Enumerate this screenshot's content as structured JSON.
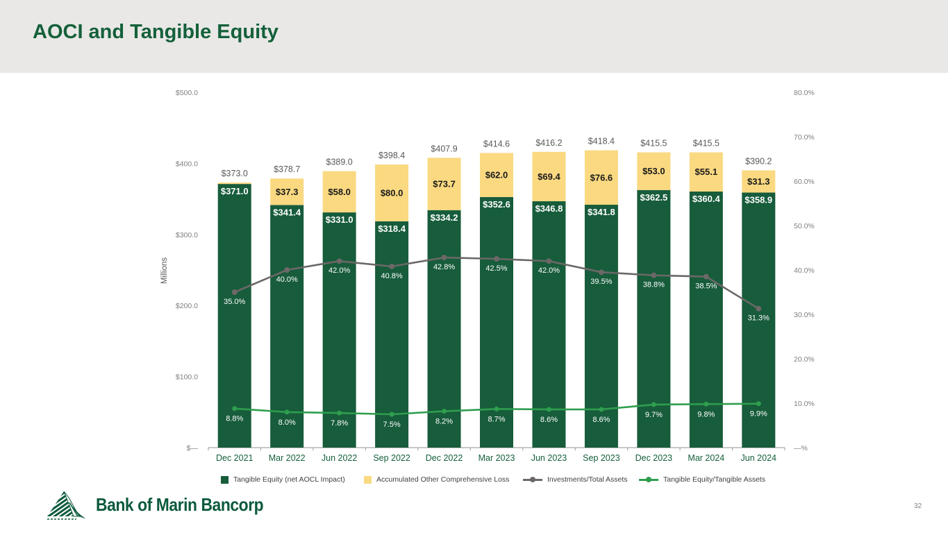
{
  "slide": {
    "title": "AOCI and Tangible Equity",
    "page_number": "32",
    "logo_text": "Bank of Marin Bancorp"
  },
  "colors": {
    "header_band": "#e9e8e6",
    "title_green": "#14603a",
    "bar_green": "#175c3b",
    "bar_yellow": "#fad981",
    "line_gray": "#6b6867",
    "line_green": "#2e9e4e",
    "total_label_gray": "#595959",
    "axis_tick_gray": "#7f7f7f",
    "x_label_green": "#14603a",
    "axis_line_gray": "#a6a6a6"
  },
  "chart_data": {
    "type": "bar",
    "subtype": "stacked-bar-with-lines",
    "categories": [
      "Dec 2021",
      "Mar 2022",
      "Jun 2022",
      "Sep 2022",
      "Dec 2022",
      "Mar 2023",
      "Jun 2023",
      "Sep 2023",
      "Dec 2023",
      "Mar 2024",
      "Jun 2024"
    ],
    "series": [
      {
        "name": "Tangible Equity (net AOCL Impact)",
        "type": "bar",
        "axis": "left",
        "color": "#175c3b",
        "values": [
          371.0,
          341.4,
          331.0,
          318.4,
          334.2,
          352.6,
          346.8,
          341.8,
          362.5,
          360.4,
          358.9
        ],
        "labels": [
          "$371.0",
          "$341.4",
          "$331.0",
          "$318.4",
          "$334.2",
          "$352.6",
          "$346.8",
          "$341.8",
          "$362.5",
          "$360.4",
          "$358.9"
        ]
      },
      {
        "name": "Accumulated Other Comprehensive Loss",
        "type": "bar",
        "axis": "left",
        "color": "#fad981",
        "values": [
          2.0,
          37.3,
          58.0,
          80.0,
          73.7,
          62.0,
          69.4,
          76.6,
          53.0,
          55.1,
          31.3
        ],
        "labels": [
          "",
          "$37.3",
          "$58.0",
          "$80.0",
          "$73.7",
          "$62.0",
          "$69.4",
          "$76.6",
          "$53.0",
          "$55.1",
          "$31.3"
        ]
      },
      {
        "name": "Investments/Total Assets",
        "type": "line",
        "axis": "right",
        "color": "#6b6867",
        "values": [
          35.0,
          40.0,
          42.0,
          40.8,
          42.8,
          42.5,
          42.0,
          39.5,
          38.8,
          38.5,
          31.3
        ],
        "labels": [
          "35.0%",
          "40.0%",
          "42.0%",
          "40.8%",
          "42.8%",
          "42.5%",
          "42.0%",
          "39.5%",
          "38.8%",
          "38.5%",
          "31.3%"
        ]
      },
      {
        "name": "Tangible Equity/Tangible Assets",
        "type": "line",
        "axis": "right",
        "color": "#2e9e4e",
        "values": [
          8.8,
          8.0,
          7.8,
          7.5,
          8.2,
          8.7,
          8.6,
          8.6,
          9.7,
          9.8,
          9.9
        ],
        "labels": [
          "8.8%",
          "8.0%",
          "7.8%",
          "7.5%",
          "8.2%",
          "8.7%",
          "8.6%",
          "8.6%",
          "9.7%",
          "9.8%",
          "9.9%"
        ]
      }
    ],
    "stack_total_labels": [
      "$373.0",
      "$378.7",
      "$389.0",
      "$398.4",
      "$407.9",
      "$414.6",
      "$416.2",
      "$418.4",
      "$415.5",
      "$415.5",
      "$390.2"
    ],
    "stack_total_values": [
      373.0,
      378.7,
      389.0,
      398.4,
      407.9,
      414.6,
      416.2,
      418.4,
      415.5,
      415.5,
      390.2
    ],
    "left_axis": {
      "title": "Millions",
      "tick_labels": [
        "$500.0",
        "$400.0",
        "$300.0",
        "$200.0",
        "$100.0",
        "$—"
      ],
      "tick_values": [
        500,
        400,
        300,
        200,
        100,
        0
      ],
      "range": [
        0,
        500
      ]
    },
    "right_axis": {
      "tick_labels": [
        "80.0%",
        "70.0%",
        "60.0%",
        "50.0%",
        "40.0%",
        "30.0%",
        "20.0%",
        "10.0%",
        "—%"
      ],
      "tick_values": [
        80,
        70,
        60,
        50,
        40,
        30,
        20,
        10,
        0
      ],
      "range": [
        0,
        80
      ]
    },
    "grid": false,
    "legend_position": "bottom"
  },
  "legend": {
    "items": [
      {
        "label": "Tangible Equity (net AOCL Impact)",
        "swatch": "green-square"
      },
      {
        "label": "Accumulated Other Comprehensive Loss",
        "swatch": "yellow-square"
      },
      {
        "label": "Investments/Total Assets",
        "swatch": "gray-line-marker"
      },
      {
        "label": "Tangible Equity/Tangible Assets",
        "swatch": "green-line-marker"
      }
    ]
  }
}
